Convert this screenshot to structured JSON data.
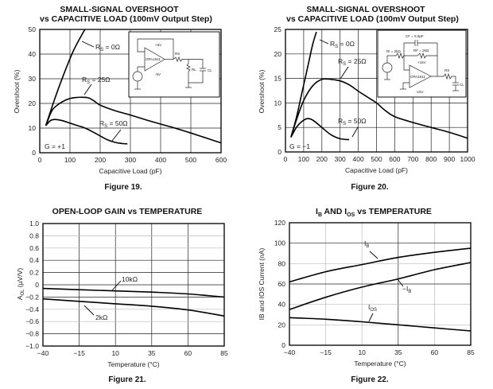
{
  "chart_data": [
    {
      "id": "fig19",
      "type": "line",
      "title_line1": "SMALL-SIGNAL OVERSHOOT",
      "title_line2": "vs CAPACITIVE LOAD (100mV Output Step)",
      "caption": "Figure 19.",
      "xlabel": "Capacitive Load (pF)",
      "ylabel": "Overshoot (%)",
      "xlim": [
        0,
        600
      ],
      "ylim": [
        0,
        50
      ],
      "xticks": [
        0,
        100,
        200,
        300,
        400,
        500,
        600
      ],
      "yticks": [
        0,
        10,
        20,
        30,
        40,
        50
      ],
      "grid": true,
      "annotation": "G = +1",
      "series": [
        {
          "name": "RS = 0Ω",
          "label_main": "R",
          "label_sub": "S",
          "label_rest": " = 0Ω",
          "x": [
            20,
            50,
            80,
            110,
            140,
            150
          ],
          "y": [
            11,
            22,
            32,
            41,
            48,
            50
          ]
        },
        {
          "name": "RS = 25Ω",
          "label_main": "R",
          "label_sub": "S",
          "label_rest": " = 25Ω",
          "x": [
            20,
            40,
            60,
            80,
            100,
            120,
            140,
            160,
            180,
            200,
            250,
            300,
            350,
            400,
            450,
            500,
            550,
            600
          ],
          "y": [
            11,
            17,
            19.5,
            21,
            22,
            22.4,
            22.5,
            22.3,
            21,
            19.3,
            17,
            15.3,
            13.4,
            11.6,
            9.9,
            8,
            6,
            4
          ]
        },
        {
          "name": "RS = 50Ω",
          "label_main": "R",
          "label_sub": "S",
          "label_rest": " = 50Ω",
          "x": [
            20,
            35,
            50,
            75,
            100,
            125,
            150,
            175,
            200,
            225,
            250,
            275,
            290
          ],
          "y": [
            11,
            13,
            13.5,
            13,
            12,
            11,
            10,
            8.5,
            6.8,
            5.2,
            4.2,
            3.7,
            3.6
          ]
        }
      ],
      "inset_schematic": {
        "labels": [
          "+5V",
          "OPA1611",
          "-5V",
          "RS",
          "RL",
          "CL"
        ]
      }
    },
    {
      "id": "fig20",
      "type": "line",
      "title_line1": "SMALL-SIGNAL OVERSHOOT",
      "title_line2": "vs CAPACITIVE LOAD (100mV Output Step)",
      "caption": "Figure 20.",
      "xlabel": "Capacitive Load (pF)",
      "ylabel": "Overshoot (%)",
      "xlim": [
        0,
        1000
      ],
      "ylim": [
        0,
        25
      ],
      "xticks": [
        0,
        100,
        200,
        300,
        400,
        500,
        600,
        700,
        800,
        900,
        1000
      ],
      "yticks": [
        0,
        5,
        10,
        15,
        20,
        25
      ],
      "grid": true,
      "annotation": "G = −1",
      "series": [
        {
          "name": "RS = 0Ω",
          "label_main": "R",
          "label_sub": "S",
          "label_rest": " = 0Ω",
          "x": [
            30,
            60,
            90,
            120,
            150,
            170
          ],
          "y": [
            3,
            7,
            12,
            17,
            22,
            24.5
          ]
        },
        {
          "name": "RS = 25Ω",
          "label_main": "R",
          "label_sub": "S",
          "label_rest": " = 25Ω",
          "x": [
            30,
            60,
            100,
            150,
            200,
            250,
            300,
            350,
            400,
            450,
            500,
            550,
            600,
            700,
            800,
            900,
            1000
          ],
          "y": [
            3,
            6.5,
            10.5,
            13.5,
            14.8,
            14.8,
            14.5,
            13.7,
            12.4,
            11.2,
            10,
            8.4,
            7.2,
            6,
            5,
            4,
            2.8
          ]
        },
        {
          "name": "RS = 50Ω",
          "label_main": "R",
          "label_sub": "S",
          "label_rest": " = 50Ω",
          "x": [
            30,
            60,
            90,
            120,
            150,
            200,
            250,
            300,
            350
          ],
          "y": [
            3,
            5,
            6.2,
            6.8,
            6.5,
            5,
            3.5,
            2.7,
            2.5
          ]
        }
      ],
      "inset_schematic": {
        "labels": [
          "CF = 5.6pF",
          "RI = 2kΩ",
          "RF = 2kΩ",
          "+15V",
          "OPA1611",
          "-15V",
          "RS",
          "CL"
        ]
      }
    },
    {
      "id": "fig21",
      "type": "line",
      "title": "OPEN-LOOP GAIN vs TEMPERATURE",
      "caption": "Figure 21.",
      "xlabel": "Temperature (°C)",
      "ylabel_main": "A",
      "ylabel_sub": "OL",
      "ylabel_rest": " (µV/V)",
      "xlim": [
        -40,
        85
      ],
      "ylim": [
        -1.0,
        1.0
      ],
      "xticks": [
        -40,
        -15,
        10,
        35,
        60,
        85
      ],
      "xticklabels": [
        "−40",
        "−15",
        "10",
        "35",
        "60",
        "85"
      ],
      "yticks": [
        1.0,
        0.8,
        0.6,
        0.4,
        0.2,
        0,
        -0.2,
        -0.4,
        -0.6,
        -0.8,
        -1.0
      ],
      "yticklabels": [
        "1.0",
        "0.8",
        "0.6",
        "0.4",
        "0.2",
        "0",
        "−0.2",
        "−0.4",
        "−0.6",
        "−0.8",
        "−1.0"
      ],
      "grid": true,
      "series": [
        {
          "name": "10kΩ",
          "x": [
            -40,
            -15,
            10,
            35,
            60,
            85
          ],
          "y": [
            -0.06,
            -0.08,
            -0.1,
            -0.12,
            -0.15,
            -0.2
          ]
        },
        {
          "name": "2kΩ",
          "x": [
            -40,
            -15,
            10,
            35,
            60,
            85
          ],
          "y": [
            -0.23,
            -0.27,
            -0.31,
            -0.35,
            -0.41,
            -0.51
          ]
        }
      ]
    },
    {
      "id": "fig22",
      "type": "line",
      "title_pre": "I",
      "title_sub1": "B",
      "title_mid": " AND I",
      "title_sub2": "OS",
      "title_post": " vs TEMPERATURE",
      "caption": "Figure 22.",
      "xlabel": "Temperature (°C)",
      "ylabel": "IB and IOS Current (nA)",
      "xlim": [
        -40,
        85
      ],
      "ylim": [
        0,
        120
      ],
      "xticks": [
        -40,
        -15,
        10,
        35,
        60,
        85
      ],
      "xticklabels": [
        "−40",
        "−15",
        "10",
        "35",
        "60",
        "85"
      ],
      "yticks": [
        0,
        20,
        40,
        60,
        80,
        100,
        120
      ],
      "grid": true,
      "series": [
        {
          "name": "IB",
          "label_main": "I",
          "label_sub": "B",
          "label_pre": "",
          "x": [
            -40,
            -15,
            10,
            35,
            60,
            85
          ],
          "y": [
            62,
            72,
            79,
            86,
            91,
            95
          ]
        },
        {
          "name": "-IB",
          "label_main": "I",
          "label_sub": "B",
          "label_pre": "−",
          "x": [
            -40,
            -15,
            10,
            35,
            60,
            85
          ],
          "y": [
            35,
            47,
            57,
            65,
            74,
            81
          ]
        },
        {
          "name": "IOS",
          "label_main": "I",
          "label_sub": "OS",
          "label_pre": "",
          "x": [
            -40,
            -15,
            10,
            35,
            60,
            85
          ],
          "y": [
            27,
            25.5,
            23,
            20,
            17,
            14
          ]
        }
      ]
    }
  ]
}
